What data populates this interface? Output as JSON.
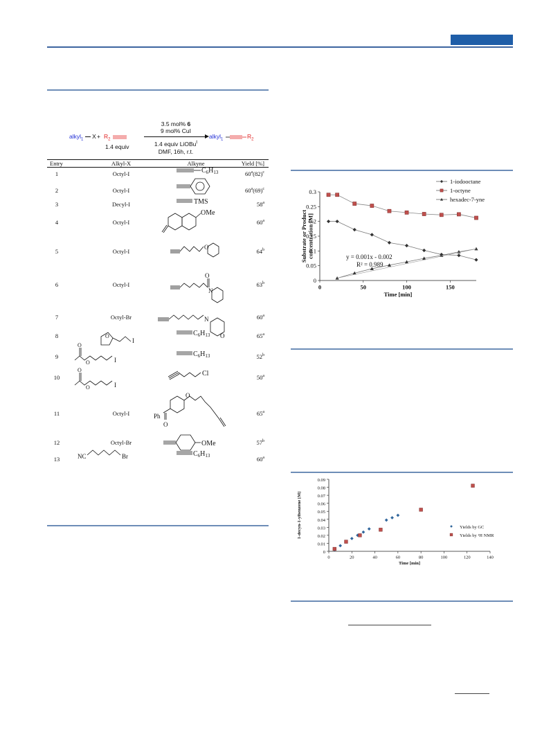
{
  "scheme": {
    "cond1": "3.5 mol% ",
    "cond1_bold": "6",
    "cond2": "9 mol% CuI",
    "cond3": "1.4 equiv LiOBu",
    "cond3_sup": "t",
    "cond4": "DMF, 16h, r.t.",
    "alkyl_label": "alkyl",
    "alkyl_sub": "1",
    "x_label": "X",
    "plus": "+",
    "r2_label": "R",
    "r2_sub": "2",
    "equiv": "1.4 equiv"
  },
  "table": {
    "headers": [
      "Entry",
      "Alkyl-X",
      "Alkyne",
      "Yield [%]"
    ],
    "rows": [
      {
        "entry": "1",
        "alkyl": "Octyl-I",
        "yield": "60",
        "yield_sup": "a",
        "yield_extra": "(82)",
        "yield_extra_sup": "c"
      },
      {
        "entry": "2",
        "alkyl": "Octyl-I",
        "yield": "60",
        "yield_sup": "a",
        "yield_extra": "(69)",
        "yield_extra_sup": "c"
      },
      {
        "entry": "3",
        "alkyl": "Decyl-I",
        "yield": "58",
        "yield_sup": "a"
      },
      {
        "entry": "4",
        "alkyl": "Octyl-I",
        "yield": "60",
        "yield_sup": "a"
      },
      {
        "entry": "5",
        "alkyl": "Octyl-I",
        "yield": "64",
        "yield_sup": "b"
      },
      {
        "entry": "6",
        "alkyl": "Octyl-I",
        "yield": "63",
        "yield_sup": "b"
      },
      {
        "entry": "7",
        "alkyl": "Octyl-Br",
        "yield": "60",
        "yield_sup": "a"
      },
      {
        "entry": "8",
        "alkyl": "",
        "yield": "65",
        "yield_sup": "a"
      },
      {
        "entry": "9",
        "alkyl": "",
        "yield": "52",
        "yield_sup": "b"
      },
      {
        "entry": "10",
        "alkyl": "",
        "yield": "50",
        "yield_sup": "a"
      },
      {
        "entry": "11",
        "alkyl": "Octyl-I",
        "yield": "65",
        "yield_sup": "a"
      },
      {
        "entry": "12",
        "alkyl": "Octyl-Br",
        "yield": "57",
        "yield_sup": "b"
      },
      {
        "entry": "13",
        "alkyl": "",
        "yield": "60",
        "yield_sup": "a"
      }
    ],
    "struct_labels": {
      "c6h13": "C",
      "c6h13_sub": "6",
      "c6h13_h": "H",
      "c6h13_sub2": "13",
      "tms": "TMS",
      "ome": "OMe",
      "o": "O",
      "n": "N",
      "i": "I",
      "cl": "Cl",
      "br": "Br",
      "nc": "NC",
      "ph": "Ph"
    }
  },
  "chart_data": [
    {
      "type": "scatter",
      "ylabel": "Substrate or Product concentration [M]",
      "xlabel": "Time [min]",
      "xlim": [
        0,
        180
      ],
      "ylim": [
        0,
        0.3
      ],
      "xticks": [
        0,
        50,
        100,
        150
      ],
      "yticks": [
        0,
        0.05,
        0.1,
        0.15,
        0.2,
        0.25,
        0.3
      ],
      "ytick_labels": [
        "0",
        "0.05",
        "0.1",
        "0.15",
        "0.2",
        "0.25",
        "0.3"
      ],
      "legend_position": "top-right",
      "series": [
        {
          "name": "1-iodooctane",
          "color": "#333333",
          "marker": "diamond",
          "x": [
            10,
            20,
            40,
            60,
            80,
            100,
            120,
            140,
            160,
            180
          ],
          "y": [
            0.2,
            0.2,
            0.172,
            0.155,
            0.128,
            0.118,
            0.102,
            0.088,
            0.085,
            0.07
          ]
        },
        {
          "name": "1-octyne",
          "color": "#c0504d",
          "marker": "square",
          "x": [
            10,
            20,
            40,
            60,
            80,
            100,
            120,
            140,
            160,
            180
          ],
          "y": [
            0.29,
            0.29,
            0.26,
            0.253,
            0.235,
            0.23,
            0.225,
            0.222,
            0.224,
            0.212
          ]
        },
        {
          "name": "hexadec-7-yne",
          "color": "#333333",
          "marker": "triangle",
          "x": [
            20,
            40,
            60,
            80,
            100,
            120,
            140,
            160,
            180
          ],
          "y": [
            0.008,
            0.025,
            0.04,
            0.052,
            0.063,
            0.075,
            0.085,
            0.097,
            0.107
          ]
        }
      ],
      "annotation": {
        "line1": "y = 0.001x - 0.002",
        "line2": "R² = 0.989"
      }
    },
    {
      "type": "scatter",
      "ylabel": "1-decyn-1-ylbenzene [M]",
      "xlabel": "Time [min]",
      "xlim": [
        0,
        140
      ],
      "ylim": [
        0,
        0.09
      ],
      "xticks": [
        0,
        20,
        40,
        60,
        80,
        100,
        120,
        140
      ],
      "yticks": [
        0,
        0.01,
        0.02,
        0.03,
        0.04,
        0.05,
        0.06,
        0.07,
        0.08,
        0.09
      ],
      "ytick_labels": [
        "0",
        "0.01",
        "0.02",
        "0.03",
        "0.04",
        "0.05",
        "0.06",
        "0.07",
        "0.08",
        "0.09"
      ],
      "legend_position": "bottom-right",
      "series": [
        {
          "name": "Yields by GC",
          "color": "#31669c",
          "marker": "diamond",
          "x": [
            5,
            10,
            15,
            20,
            25,
            30,
            35,
            50,
            55,
            60
          ],
          "y": [
            0.002,
            0.007,
            0.012,
            0.016,
            0.02,
            0.024,
            0.028,
            0.039,
            0.042,
            0.045
          ]
        },
        {
          "name": "Yields by ¹H NMR",
          "color": "#c0504d",
          "marker": "square",
          "x": [
            5,
            15,
            27,
            45,
            80,
            125
          ],
          "y": [
            0.003,
            0.012,
            0.02,
            0.027,
            0.052,
            0.082
          ]
        }
      ]
    }
  ]
}
